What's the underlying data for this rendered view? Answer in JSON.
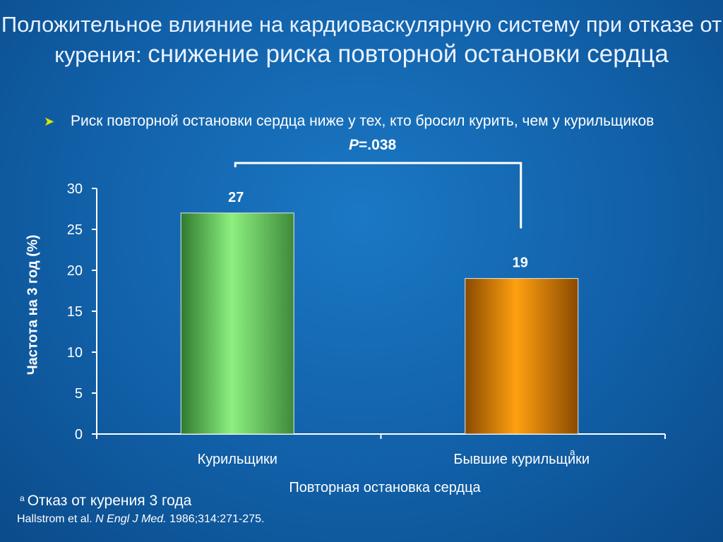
{
  "slide": {
    "title_part1": "Положительное влияние на кардиоваскулярную систему при отказе от курения:",
    "title_part2": "снижение риска повторной остановки сердца",
    "bullet": "Риск повторной остановки сердца ниже у тех, кто бросил курить, чем у курильщиков",
    "p_label": "P",
    "p_value": "=.038",
    "footnote_marker": "a",
    "footnote_text": "Отказ от курения 3 года",
    "citation_authors": "Hallstrom et al.",
    "citation_journal": "N Engl J Med.",
    "citation_ref": "1986;314:271-275."
  },
  "chart_data": {
    "type": "bar",
    "categories": [
      "Курильщики",
      "Бывшие курильщики"
    ],
    "category_superscripts": [
      "",
      "a"
    ],
    "values": [
      27,
      19
    ],
    "data_labels": [
      "27",
      "19"
    ],
    "xlabel": "Повторная остановка сердца",
    "ylabel": "Частота на 3 год (%)",
    "ylim": [
      0,
      30
    ],
    "yticks": [
      0,
      5,
      10,
      15,
      20,
      25,
      30
    ],
    "bar_colors": [
      "#5fc85a",
      "#f08a00"
    ],
    "grid": false,
    "legend": "none"
  }
}
